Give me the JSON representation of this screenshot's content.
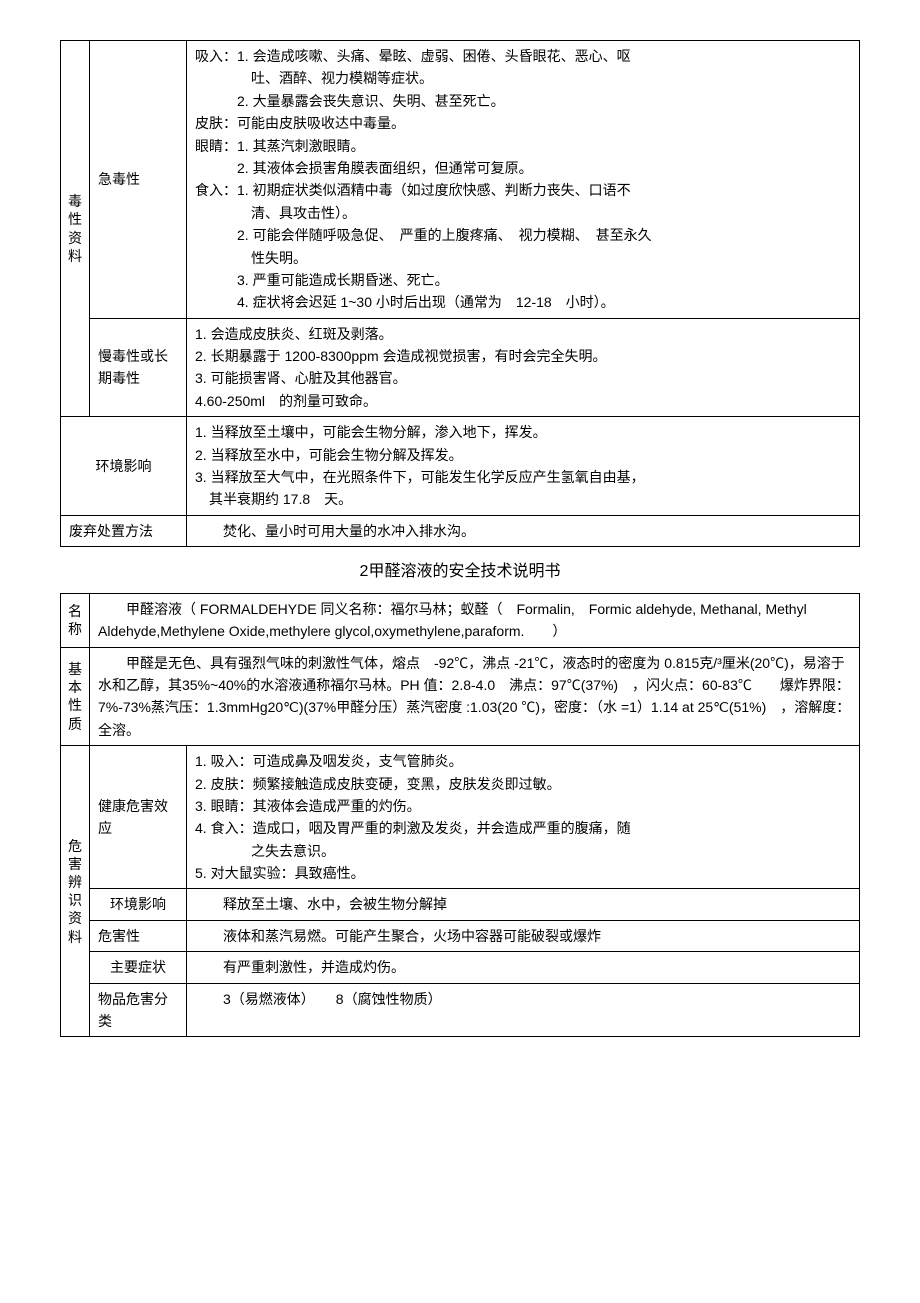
{
  "table1": {
    "row1": {
      "cat": "毒性资料",
      "sub": "急毒性",
      "lines": [
        "吸入：1. 会造成咳嗽、头痛、晕眩、虚弱、困倦、头昏眼花、恶心、呕",
        "　　　　吐、酒醉、视力模糊等症状。",
        "　　　2. 大量暴露会丧失意识、失明、甚至死亡。",
        "皮肤：可能由皮肤吸收达中毒量。",
        "眼睛：1. 其蒸汽刺激眼睛。",
        "　　　2. 其液体会损害角膜表面组织，但通常可复原。",
        "食入：1. 初期症状类似酒精中毒（如过度欣快感、判断力丧失、口语不",
        "　　　　清、具攻击性）。",
        "　　　2. 可能会伴随呼吸急促、　严重的上腹疼痛、　视力模糊、　甚至永久",
        "　　　　性失明。",
        "　　　3. 严重可能造成长期昏迷、死亡。",
        "　　　4. 症状将会迟延 1~30 小时后出现（通常为　12-18　小时）。"
      ]
    },
    "row2": {
      "sub": "慢毒性或长期毒性",
      "lines": [
        "1. 会造成皮肤炎、红斑及剥落。",
        "2. 长期暴露于 1200-8300ppm 会造成视觉损害，有时会完全失明。",
        "3. 可能损害肾、心脏及其他器官。",
        "4.60-250ml　的剂量可致命。"
      ]
    },
    "row3": {
      "label": "环境影响",
      "lines": [
        "1. 当释放至土壤中，可能会生物分解，渗入地下，挥发。",
        "2. 当释放至水中，可能会生物分解及挥发。",
        "3. 当释放至大气中，在光照条件下，可能发生化学反应产生氢氧自由基，",
        "　其半衰期约 17.8　天。"
      ]
    },
    "row4": {
      "label": "废弃处置方法",
      "content": "　　焚化、量小时可用大量的水冲入排水沟。"
    }
  },
  "title2": "2甲醛溶液的安全技术说明书",
  "table2": {
    "row_name": {
      "cat": "名称",
      "content": "　　甲醛溶液（ FORMALDEHYDE 同义名称：福尔马林；蚁醛（　Formalin,　Formic aldehyde, Methanal, Methyl Aldehyde,Methylene Oxide,methylere glycol,oxymethylene,paraform.　　）"
    },
    "row_basic": {
      "cat": "基本性质",
      "content": "　　甲醛是无色、具有强烈气味的刺激性气体，熔点　-92℃，沸点 -21℃，液态时的密度为 0.815克/³厘米(20℃)，易溶于水和乙醇，其35%~40%的水溶液通称福尔马林。PH 值：2.8-4.0　沸点：97℃(37%)　，闪火点：60-83℃　　爆炸界限：7%-73%蒸汽压：1.3mmHg20℃)(37%甲醛分压）蒸汽密度 :1.03(20 ℃)，密度：（水 =1）1.14 at 25℃(51%)　，溶解度：全溶。"
    },
    "hazard_cat": "危害辨识资料",
    "row_health": {
      "sub": "健康危害效应",
      "lines": [
        "1. 吸入：可造成鼻及咽发炎，支气管肺炎。",
        "2. 皮肤：频繁接触造成皮肤变硬，变黑，皮肤发炎即过敏。",
        "3. 眼睛：其液体会造成严重的灼伤。",
        "4. 食入：造成口，咽及胃严重的刺激及发炎，并会造成严重的腹痛，随",
        "　　　　之失去意识。",
        "5. 对大鼠实验：具致癌性。"
      ]
    },
    "row_env": {
      "sub": "环境影响",
      "content": "　　释放至土壤、水中，会被生物分解掉"
    },
    "row_danger": {
      "sub": "危害性",
      "content": "　　液体和蒸汽易燃。可能产生聚合，火场中容器可能破裂或爆炸"
    },
    "row_symptom": {
      "sub": "主要症状",
      "content": "　　有严重刺激性，并造成灼伤。"
    },
    "row_class": {
      "sub": "物品危害分类",
      "content": "　　3（易燃液体）　　8（腐蚀性物质）"
    }
  }
}
